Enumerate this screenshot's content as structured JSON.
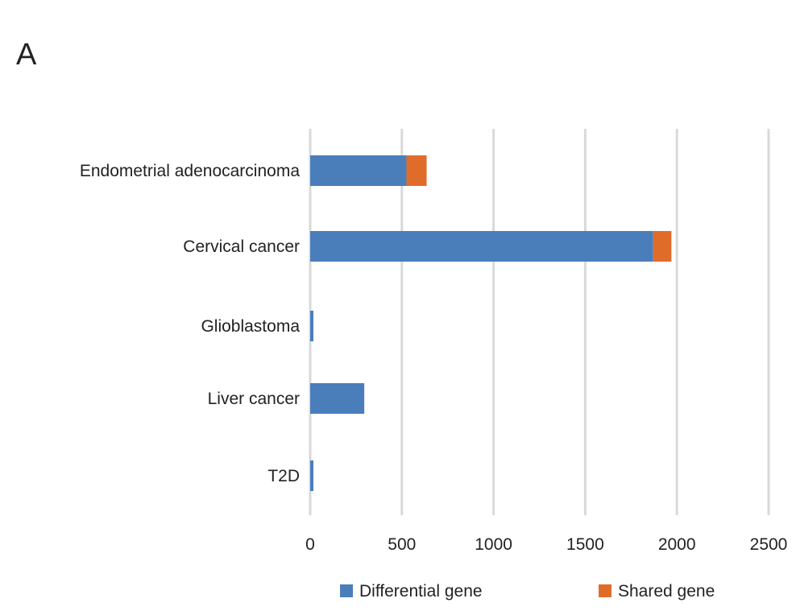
{
  "panel_label": "A",
  "chart_data": {
    "type": "bar",
    "orientation": "horizontal",
    "stacked": true,
    "categories": [
      "Endometrial adenocarcinoma",
      "Cervical cancer",
      "Glioblastoma",
      "Liver cancer",
      "T2D"
    ],
    "series": [
      {
        "name": "Differential gene",
        "values": [
          525,
          1870,
          12,
          295,
          12
        ],
        "color": "#4a7ebb"
      },
      {
        "name": "Shared gene",
        "values": [
          110,
          100,
          0,
          0,
          0
        ],
        "color": "#e06c2a"
      }
    ],
    "x_ticks": [
      "0",
      "500",
      "1000",
      "1500",
      "2000",
      "2500"
    ],
    "xlim": [
      0,
      2500
    ],
    "grid": "vertical",
    "legend_position": "bottom"
  }
}
